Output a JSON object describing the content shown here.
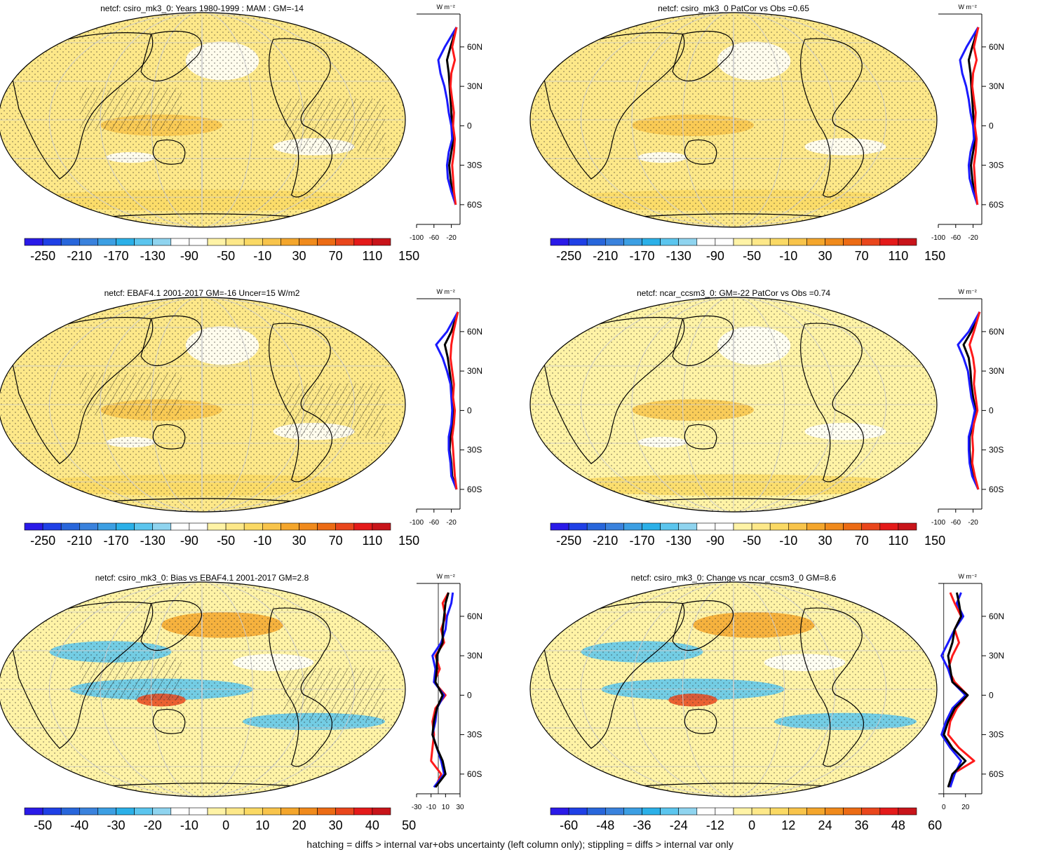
{
  "footnote": "hatching = diffs > internal var+obs uncertainty (left column only); stippling = diffs > internal var only",
  "colors": {
    "scale": [
      "#2a1ae8",
      "#1f40e6",
      "#2866db",
      "#3a82dd",
      "#3c9fe3",
      "#2bb0e8",
      "#5bc5ee",
      "#8fd4ef",
      "#ffffff",
      "#ffffff",
      "#fff3a6",
      "#fde889",
      "#fad964",
      "#f8c44b",
      "#f4a62c",
      "#f08a1c",
      "#ec6b14",
      "#e9461c",
      "#e41a1a",
      "#c8141a"
    ],
    "zonal_model": "#000000",
    "zonal_blue": "#1a1aff",
    "zonal_red": "#ff1a1a"
  },
  "chart_data": [
    {
      "type": "heatmap",
      "title": "netcf: csiro_mk3_0: Years 1980-1999 : MAM : GM=-14",
      "colorbar_labels": [
        "-250",
        "-210",
        "-170",
        "-130",
        "-90",
        "-50",
        "-10",
        "30",
        "70",
        "110",
        "150"
      ],
      "colorbar_levels": [
        -250,
        150
      ],
      "base_color_index": 11,
      "profile": {
        "unit": "W m⁻²",
        "lat_labels": [
          "60N",
          "30N",
          "0",
          "30S",
          "60S"
        ],
        "x_ticks": [
          "-100",
          "-60",
          "-20"
        ],
        "xlim": [
          -100,
          0
        ],
        "lat": [
          75,
          60,
          50,
          40,
          30,
          20,
          10,
          0,
          -10,
          -20,
          -30,
          -40,
          -50,
          -60
        ],
        "series": [
          {
            "name": "",
            "color": "zonal_model",
            "values": [
              -8,
              -22,
              -30,
              -26,
              -24,
              -22,
              -20,
              -18,
              -15,
              -20,
              -25,
              -22,
              -18,
              -10
            ]
          },
          {
            "name": "",
            "color": "zonal_blue",
            "values": [
              -8,
              -35,
              -50,
              -45,
              -36,
              -30,
              -26,
              -20,
              -18,
              -26,
              -30,
              -28,
              -20,
              -10
            ]
          },
          {
            "name": "",
            "color": "zonal_red",
            "values": [
              -8,
              -18,
              -12,
              -20,
              -22,
              -18,
              -14,
              -16,
              -12,
              -14,
              -18,
              -16,
              -14,
              -10
            ]
          }
        ]
      }
    },
    {
      "type": "heatmap",
      "title": "netcf: csiro_mk3_0 PatCor vs Obs =0.65",
      "colorbar_labels": [
        "-250",
        "-210",
        "-170",
        "-130",
        "-90",
        "-50",
        "-10",
        "30",
        "70",
        "110",
        "150"
      ],
      "colorbar_levels": [
        -250,
        150
      ],
      "base_color_index": 11,
      "profile": {
        "unit": "W m⁻²",
        "lat_labels": [
          "60N",
          "30N",
          "0",
          "30S",
          "60S"
        ],
        "x_ticks": [
          "-100",
          "-60",
          "-20"
        ],
        "xlim": [
          -100,
          0
        ],
        "lat": [
          75,
          60,
          50,
          40,
          30,
          20,
          10,
          0,
          -10,
          -20,
          -30,
          -40,
          -50,
          -60
        ],
        "series": [
          {
            "name": "",
            "color": "zonal_model",
            "values": [
              -8,
              -22,
              -30,
              -26,
              -24,
              -22,
              -20,
              -18,
              -15,
              -20,
              -25,
              -22,
              -18,
              -10
            ]
          },
          {
            "name": "",
            "color": "zonal_blue",
            "values": [
              -8,
              -35,
              -50,
              -45,
              -36,
              -30,
              -26,
              -20,
              -18,
              -26,
              -30,
              -28,
              -20,
              -10
            ]
          },
          {
            "name": "",
            "color": "zonal_red",
            "values": [
              -8,
              -18,
              -12,
              -20,
              -22,
              -18,
              -14,
              -16,
              -12,
              -14,
              -18,
              -16,
              -14,
              -10
            ]
          }
        ]
      }
    },
    {
      "type": "heatmap",
      "title": "netcf: EBAF4.1 2001-2017 GM=-16 Uncer=15 W/m2",
      "colorbar_labels": [
        "-250",
        "-210",
        "-170",
        "-130",
        "-90",
        "-50",
        "-10",
        "30",
        "70",
        "110",
        "150"
      ],
      "colorbar_levels": [
        -250,
        150
      ],
      "base_color_index": 11,
      "profile": {
        "unit": "W m⁻²",
        "lat_labels": [
          "60N",
          "30N",
          "0",
          "30S",
          "60S"
        ],
        "x_ticks": [
          "-100",
          "-60",
          "-20"
        ],
        "xlim": [
          -100,
          0
        ],
        "lat": [
          75,
          60,
          50,
          40,
          30,
          20,
          10,
          0,
          -10,
          -20,
          -30,
          -40,
          -50,
          -60
        ],
        "series": [
          {
            "name": "",
            "color": "zonal_model",
            "values": [
              -5,
              -20,
              -35,
              -28,
              -24,
              -20,
              -18,
              -15,
              -18,
              -22,
              -24,
              -20,
              -18,
              -8
            ]
          },
          {
            "name": "",
            "color": "zonal_blue",
            "values": [
              -5,
              -30,
              -55,
              -40,
              -30,
              -22,
              -20,
              -18,
              -20,
              -26,
              -26,
              -22,
              -20,
              -8
            ]
          },
          {
            "name": "",
            "color": "zonal_red",
            "values": [
              -5,
              -15,
              -20,
              -22,
              -18,
              -14,
              -16,
              -12,
              -14,
              -18,
              -16,
              -14,
              -12,
              -8
            ]
          }
        ]
      }
    },
    {
      "type": "heatmap",
      "title": "netcf: ncar_ccsm3_0: GM=-22 PatCor vs Obs =0.74",
      "colorbar_labels": [
        "-250",
        "-210",
        "-170",
        "-130",
        "-90",
        "-50",
        "-10",
        "30",
        "70",
        "110",
        "150"
      ],
      "colorbar_levels": [
        -250,
        150
      ],
      "base_color_index": 10,
      "profile": {
        "unit": "W m⁻²",
        "lat_labels": [
          "60N",
          "30N",
          "0",
          "30S",
          "60S"
        ],
        "x_ticks": [
          "-100",
          "-60",
          "-20"
        ],
        "xlim": [
          -100,
          0
        ],
        "lat": [
          75,
          60,
          50,
          40,
          30,
          20,
          10,
          0,
          -10,
          -20,
          -30,
          -40,
          -50,
          -60
        ],
        "series": [
          {
            "name": "",
            "color": "zonal_model",
            "values": [
              -5,
              -24,
              -42,
              -30,
              -26,
              -24,
              -20,
              -14,
              -20,
              -28,
              -28,
              -26,
              -20,
              -8
            ]
          },
          {
            "name": "",
            "color": "zonal_blue",
            "values": [
              -5,
              -30,
              -55,
              -42,
              -32,
              -28,
              -24,
              -16,
              -22,
              -30,
              -30,
              -28,
              -22,
              -8
            ]
          },
          {
            "name": "",
            "color": "zonal_red",
            "values": [
              -5,
              -18,
              -28,
              -20,
              -16,
              -18,
              -14,
              -10,
              -18,
              -22,
              -20,
              -22,
              -16,
              -8
            ]
          }
        ]
      }
    },
    {
      "type": "heatmap",
      "title": "netcf: csiro_mk3_0: Bias vs EBAF4.1 2001-2017 GM=2.8",
      "colorbar_labels": [
        "-50",
        "-40",
        "-30",
        "-20",
        "-10",
        "0",
        "10",
        "20",
        "30",
        "40",
        "50"
      ],
      "colorbar_levels": [
        -50,
        50
      ],
      "base_color_index": 10,
      "profile": {
        "unit": "W m⁻²",
        "lat_labels": [
          "60N",
          "30N",
          "0",
          "30S",
          "60S"
        ],
        "x_ticks": [
          "-30",
          "-10",
          "10",
          "30"
        ],
        "x_tick_values": [
          -30,
          -10,
          10,
          30
        ],
        "xlim": [
          -30,
          30
        ],
        "zero_line": true,
        "lat": [
          78,
          70,
          60,
          50,
          40,
          30,
          20,
          10,
          0,
          -10,
          -20,
          -30,
          -40,
          -50,
          -60,
          -70
        ],
        "series": [
          {
            "name": "",
            "color": "zonal_red",
            "values": [
              14,
              6,
              10,
              4,
              8,
              -4,
              2,
              -6,
              10,
              -4,
              -8,
              -6,
              -8,
              -10,
              4,
              -4
            ]
          },
          {
            "name": "",
            "color": "zonal_blue",
            "values": [
              20,
              18,
              12,
              10,
              4,
              -8,
              -4,
              -6,
              8,
              -2,
              -4,
              -8,
              -2,
              4,
              8,
              -6
            ]
          },
          {
            "name": "",
            "color": "zonal_model",
            "values": [
              14,
              10,
              8,
              6,
              6,
              -2,
              -2,
              -4,
              6,
              -2,
              -6,
              -8,
              -2,
              6,
              10,
              -4
            ]
          }
        ]
      }
    },
    {
      "type": "heatmap",
      "title": "netcf: csiro_mk3_0: Change vs ncar_ccsm3_0 GM=8.6",
      "colorbar_labels": [
        "-60",
        "-48",
        "-36",
        "-24",
        "-12",
        "0",
        "12",
        "24",
        "36",
        "48",
        "60"
      ],
      "colorbar_levels": [
        -60,
        60
      ],
      "base_color_index": 10,
      "profile": {
        "unit": "W m⁻²",
        "lat_labels": [
          "60N",
          "30N",
          "0",
          "30S",
          "60S"
        ],
        "x_ticks": [
          "0",
          "20"
        ],
        "x_tick_values": [
          0,
          20
        ],
        "xlim": [
          -5,
          35
        ],
        "zero_line": true,
        "lat": [
          78,
          70,
          60,
          50,
          40,
          30,
          20,
          10,
          0,
          -10,
          -20,
          -30,
          -40,
          -50,
          -60,
          -70
        ],
        "series": [
          {
            "name": "",
            "color": "zonal_red",
            "values": [
              6,
              10,
              16,
              10,
              14,
              8,
              4,
              10,
              22,
              12,
              6,
              4,
              14,
              28,
              8,
              6
            ]
          },
          {
            "name": "",
            "color": "zonal_blue",
            "values": [
              16,
              12,
              18,
              10,
              4,
              -2,
              4,
              8,
              20,
              8,
              2,
              -2,
              6,
              16,
              10,
              6
            ]
          },
          {
            "name": "",
            "color": "zonal_model",
            "values": [
              12,
              14,
              16,
              10,
              8,
              4,
              6,
              8,
              22,
              10,
              4,
              0,
              8,
              20,
              8,
              4
            ]
          }
        ]
      }
    }
  ]
}
